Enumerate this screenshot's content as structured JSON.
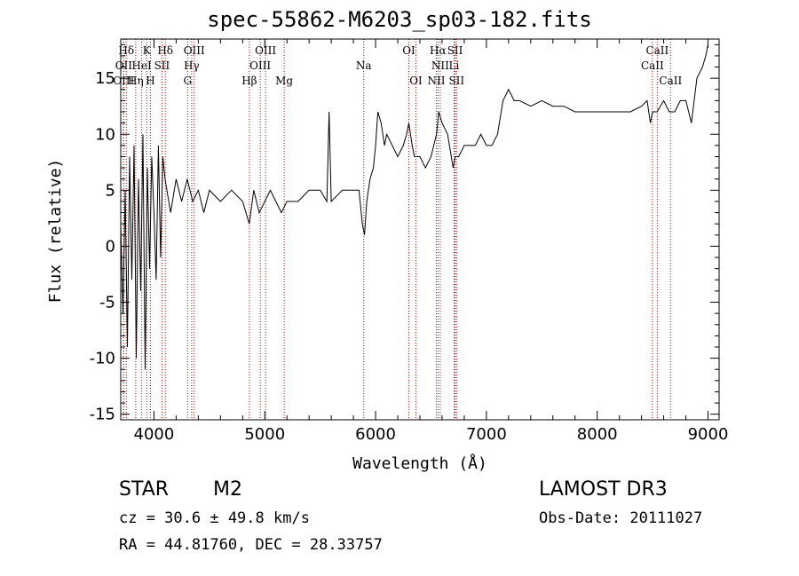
{
  "chart_data": {
    "type": "line",
    "title": "spec-55862-M6203_sp03-182.fits",
    "xlabel": "Wavelength (Å)",
    "ylabel": "Flux (relative)",
    "xlim": [
      3700,
      9100
    ],
    "ylim": [
      -15.5,
      18.5
    ],
    "xticks": [
      4000,
      5000,
      6000,
      7000,
      8000,
      9000
    ],
    "yticks": [
      -15,
      -10,
      -5,
      0,
      5,
      10,
      15
    ],
    "spectrum": {
      "x": [
        3700,
        3720,
        3740,
        3760,
        3780,
        3800,
        3820,
        3840,
        3860,
        3880,
        3900,
        3920,
        3940,
        3960,
        3980,
        4000,
        4020,
        4040,
        4060,
        4080,
        4100,
        4150,
        4200,
        4250,
        4300,
        4350,
        4400,
        4450,
        4500,
        4600,
        4700,
        4800,
        4860,
        4900,
        4950,
        5000,
        5050,
        5100,
        5150,
        5200,
        5300,
        5400,
        5500,
        5560,
        5580,
        5600,
        5700,
        5800,
        5850,
        5880,
        5900,
        5920,
        5950,
        5980,
        6000,
        6020,
        6050,
        6080,
        6100,
        6150,
        6200,
        6250,
        6280,
        6300,
        6330,
        6350,
        6400,
        6450,
        6500,
        6550,
        6570,
        6600,
        6650,
        6700,
        6720,
        6750,
        6800,
        6850,
        6900,
        6950,
        7000,
        7050,
        7100,
        7150,
        7200,
        7250,
        7300,
        7400,
        7500,
        7600,
        7700,
        7800,
        7900,
        8000,
        8100,
        8200,
        8300,
        8400,
        8450,
        8480,
        8500,
        8540,
        8600,
        8650,
        8700,
        8750,
        8800,
        8850,
        8900,
        8950,
        8980,
        9000
      ],
      "y": [
        2,
        -6,
        5,
        -9,
        8,
        -3,
        9,
        -10,
        6,
        -4,
        10,
        -11,
        7,
        -2,
        8,
        3,
        -3,
        9,
        -1,
        8,
        6,
        3,
        6,
        4,
        6,
        4,
        5,
        3,
        5,
        4,
        5,
        4,
        2,
        5,
        3,
        4,
        5,
        4,
        3,
        4,
        4,
        5,
        5,
        4,
        12,
        4,
        5,
        5,
        5,
        2,
        1,
        4,
        6,
        7,
        9,
        12,
        11,
        9,
        10,
        9,
        8,
        9,
        10,
        11,
        9,
        8,
        8,
        7,
        8,
        10,
        12,
        11,
        10,
        7,
        8,
        8,
        9,
        9,
        9,
        10,
        9,
        9,
        10,
        13,
        14,
        13,
        13,
        12.5,
        13,
        12.5,
        12.5,
        12,
        12,
        12,
        12,
        12,
        12,
        12.5,
        13,
        11,
        12,
        12,
        13,
        12,
        12,
        13,
        13,
        11,
        15,
        16,
        17,
        18
      ]
    },
    "lines": [
      {
        "name": "Hδ",
        "x": 3750,
        "row": 0
      },
      {
        "name": "K",
        "x": 3934,
        "row": 0
      },
      {
        "name": "Hδ",
        "x": 4102,
        "row": 0
      },
      {
        "name": "OIII",
        "x": 4363,
        "row": 0
      },
      {
        "name": "OIII",
        "x": 5007,
        "row": 0
      },
      {
        "name": "OI",
        "x": 6300,
        "row": 0
      },
      {
        "name": "Hα",
        "x": 6563,
        "row": 0
      },
      {
        "name": "SII",
        "x": 6717,
        "row": 0
      },
      {
        "name": "CaII",
        "x": 8542,
        "row": 0
      },
      {
        "name": "OII",
        "x": 3727,
        "row": 1
      },
      {
        "name": "HeI",
        "x": 3889,
        "row": 1
      },
      {
        "name": "SII",
        "x": 4072,
        "row": 1
      },
      {
        "name": "Hγ",
        "x": 4340,
        "row": 1
      },
      {
        "name": "OIII",
        "x": 4959,
        "row": 1
      },
      {
        "name": "Na",
        "x": 5893,
        "row": 1
      },
      {
        "name": "NII",
        "x": 6583,
        "row": 1
      },
      {
        "name": "Li",
        "x": 6708,
        "row": 1
      },
      {
        "name": "CaII",
        "x": 8498,
        "row": 1
      },
      {
        "name": "OIII",
        "x": 3727,
        "row": 2
      },
      {
        "name": "Hη",
        "x": 3835,
        "row": 2
      },
      {
        "name": "H",
        "x": 3968,
        "row": 2
      },
      {
        "name": "G",
        "x": 4304,
        "row": 2
      },
      {
        "name": "Hβ",
        "x": 4861,
        "row": 2
      },
      {
        "name": "Mg",
        "x": 5175,
        "row": 2
      },
      {
        "name": "OI",
        "x": 6364,
        "row": 2
      },
      {
        "name": "NII",
        "x": 6548,
        "row": 2
      },
      {
        "name": "SII",
        "x": 6731,
        "row": 2
      },
      {
        "name": "CaII",
        "x": 8662,
        "row": 2
      }
    ]
  },
  "info": {
    "class": "STAR",
    "subclass": "M2",
    "survey": "LAMOST DR3",
    "cz": "cz = 30.6 ± 49.8 km/s",
    "obs_date": "Obs-Date: 20111027",
    "radec": "RA =  44.81760, DEC =  28.33757"
  }
}
